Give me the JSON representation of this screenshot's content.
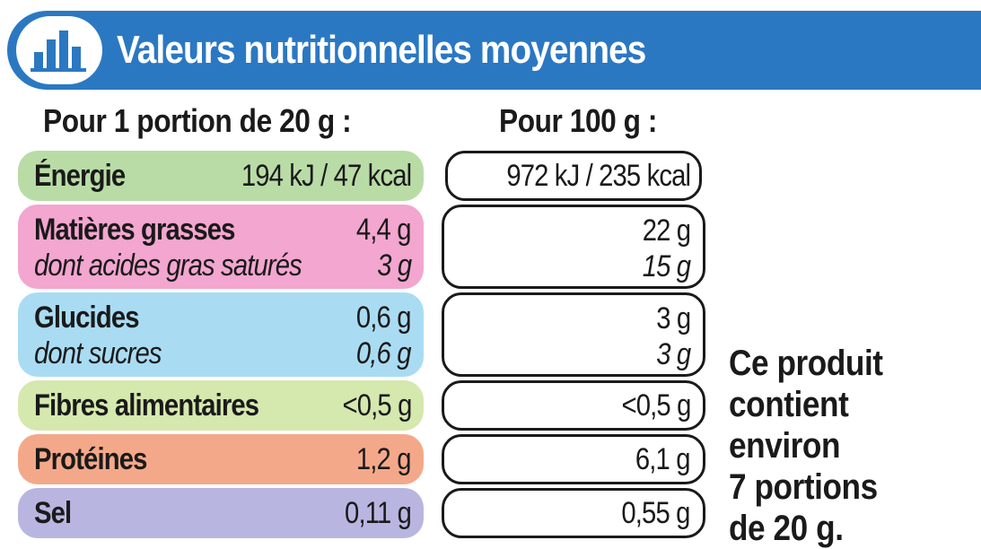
{
  "header": {
    "title": "Valeurs nutritionnelles moyennes",
    "icon": "bar-chart-icon",
    "color": "#2b78c2"
  },
  "columns": {
    "portion": "Pour 1 portion de 20 g :",
    "per100": "Pour 100 g :"
  },
  "rows": {
    "energie": {
      "label": "Énergie",
      "portion": "194 kJ / 47 kcal",
      "per100": "972 kJ / 235 kcal",
      "color": "#b9dca6"
    },
    "grasses": {
      "label": "Matières grasses",
      "portion": "4,4 g",
      "per100": "22 g",
      "color": "#f3a6cf",
      "sub_label": "dont acides gras saturés",
      "sub_portion": "3 g",
      "sub_per100": "15 g"
    },
    "glucides": {
      "label": "Glucides",
      "portion": "0,6 g",
      "per100": "3 g",
      "color": "#a9dcf3",
      "sub_label": "dont sucres",
      "sub_portion": "0,6 g",
      "sub_per100": "3 g"
    },
    "fibres": {
      "label": "Fibres alimentaires",
      "portion": "<0,5 g",
      "per100": "<0,5 g",
      "color": "#d5e8ae"
    },
    "proteines": {
      "label": "Protéines",
      "portion": "1,2 g",
      "per100": "6,1 g",
      "color": "#f4a88a"
    },
    "sel": {
      "label": "Sel",
      "portion": "0,11 g",
      "per100": "0,55 g",
      "color": "#b8b6e0"
    }
  },
  "note": {
    "line1": "Ce produit",
    "line2": "contient",
    "line3": "environ",
    "line4": "7 portions",
    "line5": "de 20 g."
  }
}
